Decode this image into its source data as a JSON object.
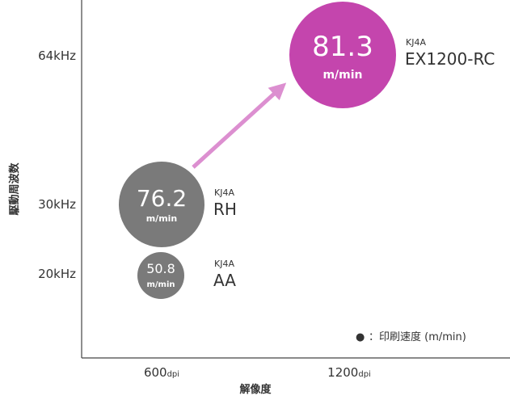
{
  "chart_data": {
    "type": "scatter",
    "xlabel": "解像度",
    "ylabel": "駆動周波数",
    "x_tick_labels": [
      {
        "value": "600",
        "unit": "dpi"
      },
      {
        "value": "1200",
        "unit": "dpi"
      }
    ],
    "y_tick_labels": [
      "64kHz",
      "30kHz",
      "20kHz"
    ],
    "points": [
      {
        "head": "KJ4A",
        "model": "AA",
        "resolution": "600dpi",
        "frequency": "20kHz",
        "speed": "50.8",
        "unit": "m/min",
        "color": "#7a7a7a"
      },
      {
        "head": "KJ4A",
        "model": "RH",
        "resolution": "600dpi",
        "frequency": "30kHz",
        "speed": "76.2",
        "unit": "m/min",
        "color": "#7a7a7a"
      },
      {
        "head": "KJ4A",
        "model": "EX1200-RC",
        "resolution": "1200dpi",
        "frequency": "64kHz",
        "speed": "81.3",
        "unit": "m/min",
        "color": "#c445ad"
      }
    ],
    "legend": {
      "marker": "●",
      "text": "：印刷速度 (m/min)",
      "position": "bottom-right"
    },
    "arrow_color": "#dc8fd0",
    "axis_color": "#444444",
    "grid": false
  }
}
